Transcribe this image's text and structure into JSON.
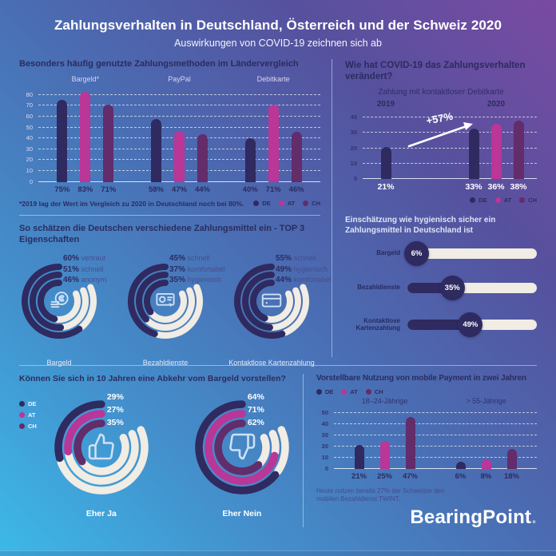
{
  "header": {
    "title": "Zahlungsverhalten in Deutschland, Österreich und der Schweiz 2020",
    "subtitle": "Auswirkungen von COVID-19 zeichnen sich ab"
  },
  "colors": {
    "DE": "#2f2a60",
    "AT": "#ba3697",
    "CH": "#632c6a",
    "track": "#f1ece4",
    "logo_dot": "#9dbceb"
  },
  "countries": [
    "DE",
    "AT",
    "CH"
  ],
  "chart_data": [
    {
      "id": "payment_methods",
      "type": "bar",
      "title": "Besonders häufig genutzte Zahlungsmethoden im Ländervergleich",
      "unit": "%",
      "categories": [
        "Bargeld*",
        "PayPal",
        "Debitkarte"
      ],
      "series": [
        {
          "name": "DE",
          "values": [
            75,
            58,
            40
          ]
        },
        {
          "name": "AT",
          "values": [
            83,
            47,
            71
          ]
        },
        {
          "name": "CH",
          "values": [
            71,
            44,
            46
          ]
        }
      ],
      "yticks": [
        0,
        10,
        20,
        30,
        40,
        50,
        60,
        70,
        80
      ],
      "ylim": [
        0,
        88
      ],
      "grid": true,
      "legend": [
        "DE",
        "AT",
        "CH"
      ],
      "legend_position": "bottom-right",
      "footnote": "*2019 lag der Wert im Vergleich zu 2020 in Deutschland noch bei 80%."
    },
    {
      "id": "contactless_debit_change",
      "type": "bar",
      "title": "Wie hat COVID-19 das Zahlungsverhalten verändert?",
      "subtitle": "Zahlung mit kontaktloser Debitkarte",
      "annotation": "+57%",
      "unit": "%",
      "groups": [
        {
          "label": "2019",
          "series": [
            "DE"
          ],
          "values": [
            21
          ]
        },
        {
          "label": "2020",
          "series": [
            "DE",
            "AT",
            "CH"
          ],
          "values": [
            33,
            36,
            38
          ]
        }
      ],
      "yticks": [
        0,
        10,
        20,
        30,
        40
      ],
      "ylim": [
        0,
        44
      ],
      "grid": true,
      "legend": [
        "DE",
        "AT",
        "CH"
      ],
      "legend_position": "bottom-right"
    },
    {
      "id": "hygiene_rating",
      "type": "bar",
      "orientation": "horizontal",
      "title": "Einschätzung wie hygienisch sicher ein Zahlungsmittel in Deutschland ist",
      "unit": "%",
      "categories": [
        "Bargeld",
        "Bezahldienste",
        "Kontaktlose Kartenzahlung"
      ],
      "values": [
        6,
        35,
        49
      ],
      "xlim": [
        0,
        100
      ]
    },
    {
      "id": "payment_attributes",
      "type": "donut",
      "title": "So schätzen die Deutschen verschiedene Zahlungsmittel ein - TOP 3 Eigenschaften",
      "unit": "%",
      "items": [
        {
          "label": "Bargeld",
          "icon": "coins-icon",
          "rings": [
            {
              "value": 60,
              "attribute": "vertraut"
            },
            {
              "value": 51,
              "attribute": "schnell"
            },
            {
              "value": 46,
              "attribute": "anonym"
            }
          ]
        },
        {
          "label": "Bezahldienste",
          "icon": "payment-terminal-icon",
          "rings": [
            {
              "value": 45,
              "attribute": "schnell"
            },
            {
              "value": 37,
              "attribute": "komfortabel"
            },
            {
              "value": 35,
              "attribute": "hygienisch"
            }
          ]
        },
        {
          "label": "Kontaktlose Kartenzahlung",
          "icon": "credit-card-icon",
          "rings": [
            {
              "value": 55,
              "attribute": "schnell"
            },
            {
              "value": 49,
              "attribute": "hygienisch"
            },
            {
              "value": 44,
              "attribute": "komfortabel"
            }
          ]
        }
      ]
    },
    {
      "id": "cash_abandonment",
      "type": "donut",
      "title": "Können Sie sich in 10 Jahren eine Abkehr vom Bargeld vorstellen?",
      "unit": "%",
      "legend": [
        "DE",
        "AT",
        "CH"
      ],
      "legend_position": "left",
      "groups": [
        {
          "label": "Eher Ja",
          "icon": "thumbs-up-icon",
          "series": [
            "DE",
            "AT",
            "CH"
          ],
          "values": [
            29,
            27,
            35
          ]
        },
        {
          "label": "Eher Nein",
          "icon": "thumbs-down-icon",
          "series": [
            "DE",
            "AT",
            "CH"
          ],
          "values": [
            64,
            71,
            62
          ]
        }
      ]
    },
    {
      "id": "mobile_payment",
      "type": "bar",
      "title": "Vorstellbare Nutzung von mobile Payment in zwei Jahren",
      "unit": "%",
      "categories": [
        "18–24-Jährige",
        "> 55-Jährige"
      ],
      "series": [
        {
          "name": "DE",
          "values": [
            21,
            6
          ]
        },
        {
          "name": "AT",
          "values": [
            25,
            8
          ]
        },
        {
          "name": "CH",
          "values": [
            47,
            18
          ]
        }
      ],
      "yticks": [
        0,
        10,
        20,
        30,
        40,
        50
      ],
      "ylim": [
        0,
        55
      ],
      "grid": true,
      "legend": [
        "DE",
        "AT",
        "CH"
      ],
      "legend_position": "top-left",
      "footnote": "Heute nutzen bereits 27% der Schweizer den mobilen Bezahldienst TWINT."
    }
  ],
  "brand": {
    "name": "BearingPoint",
    "suffix": "."
  }
}
